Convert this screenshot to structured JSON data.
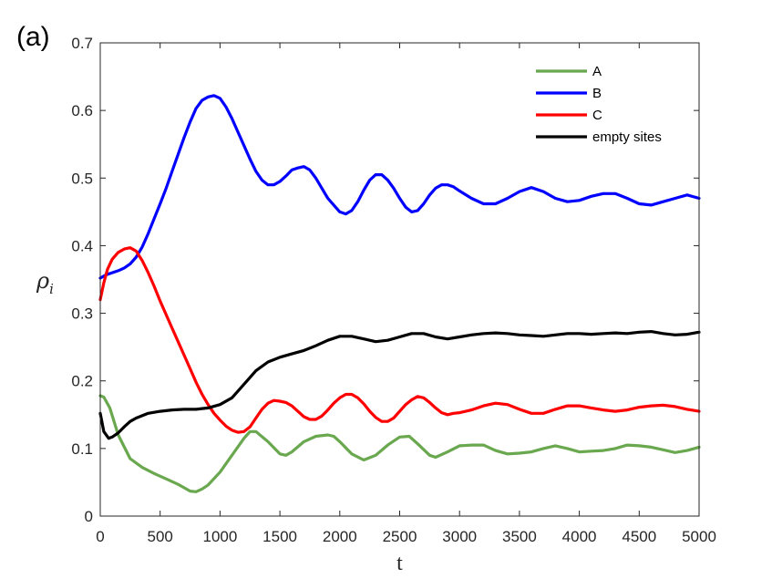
{
  "panel_label": "(a)",
  "chart_data": {
    "type": "line",
    "xlabel": "t",
    "ylabel": "ρ",
    "ylabel_subscript": "i",
    "xlim": [
      0,
      5000
    ],
    "ylim": [
      0,
      0.7
    ],
    "xticks": [
      0,
      500,
      1000,
      1500,
      2000,
      2500,
      3000,
      3500,
      4000,
      4500,
      5000
    ],
    "yticks": [
      0,
      0.1,
      0.2,
      0.3,
      0.4,
      0.5,
      0.6,
      0.7
    ],
    "xtick_labels": [
      "0",
      "500",
      "1000",
      "1500",
      "2000",
      "2500",
      "3000",
      "3500",
      "4000",
      "4500",
      "5000"
    ],
    "ytick_labels": [
      "0",
      "0.1",
      "0.2",
      "0.3",
      "0.4",
      "0.5",
      "0.6",
      "0.7"
    ],
    "grid": false,
    "legend_position": "top-right",
    "series": [
      {
        "name": "A",
        "color": "#6aa84f",
        "x": [
          0,
          30,
          80,
          150,
          250,
          350,
          450,
          550,
          650,
          700,
          750,
          800,
          850,
          900,
          1000,
          1100,
          1200,
          1250,
          1300,
          1400,
          1500,
          1550,
          1600,
          1700,
          1800,
          1900,
          1950,
          2000,
          2100,
          2200,
          2300,
          2400,
          2500,
          2580,
          2650,
          2750,
          2800,
          2900,
          3000,
          3100,
          3200,
          3300,
          3400,
          3500,
          3600,
          3700,
          3800,
          3900,
          4000,
          4100,
          4200,
          4300,
          4400,
          4500,
          4600,
          4700,
          4800,
          4900,
          5000
        ],
        "y": [
          0.178,
          0.176,
          0.16,
          0.12,
          0.085,
          0.072,
          0.063,
          0.055,
          0.047,
          0.042,
          0.037,
          0.036,
          0.04,
          0.046,
          0.065,
          0.09,
          0.115,
          0.125,
          0.125,
          0.11,
          0.092,
          0.09,
          0.095,
          0.11,
          0.118,
          0.12,
          0.118,
          0.11,
          0.092,
          0.083,
          0.09,
          0.105,
          0.117,
          0.118,
          0.107,
          0.09,
          0.087,
          0.095,
          0.104,
          0.105,
          0.105,
          0.097,
          0.092,
          0.093,
          0.095,
          0.1,
          0.104,
          0.1,
          0.095,
          0.096,
          0.097,
          0.1,
          0.105,
          0.104,
          0.102,
          0.098,
          0.094,
          0.097,
          0.102
        ]
      },
      {
        "name": "B",
        "color": "#0000ff",
        "x": [
          0,
          50,
          100,
          150,
          200,
          250,
          300,
          350,
          400,
          450,
          500,
          550,
          600,
          650,
          700,
          750,
          800,
          850,
          900,
          950,
          1000,
          1050,
          1100,
          1150,
          1200,
          1250,
          1300,
          1350,
          1400,
          1450,
          1500,
          1550,
          1600,
          1650,
          1700,
          1750,
          1800,
          1850,
          1900,
          1950,
          2000,
          2050,
          2100,
          2150,
          2200,
          2250,
          2300,
          2350,
          2400,
          2450,
          2500,
          2550,
          2600,
          2650,
          2700,
          2750,
          2800,
          2850,
          2900,
          2950,
          3000,
          3100,
          3200,
          3300,
          3400,
          3500,
          3600,
          3700,
          3800,
          3900,
          4000,
          4100,
          4200,
          4300,
          4400,
          4500,
          4600,
          4700,
          4800,
          4900,
          5000
        ],
        "y": [
          0.352,
          0.357,
          0.36,
          0.363,
          0.367,
          0.373,
          0.383,
          0.398,
          0.418,
          0.44,
          0.462,
          0.485,
          0.51,
          0.535,
          0.56,
          0.583,
          0.603,
          0.615,
          0.62,
          0.622,
          0.618,
          0.605,
          0.588,
          0.568,
          0.548,
          0.528,
          0.51,
          0.497,
          0.49,
          0.49,
          0.495,
          0.503,
          0.512,
          0.515,
          0.517,
          0.512,
          0.5,
          0.485,
          0.47,
          0.46,
          0.45,
          0.447,
          0.452,
          0.465,
          0.482,
          0.497,
          0.505,
          0.505,
          0.497,
          0.485,
          0.47,
          0.457,
          0.45,
          0.452,
          0.462,
          0.475,
          0.485,
          0.49,
          0.49,
          0.487,
          0.481,
          0.47,
          0.462,
          0.462,
          0.47,
          0.48,
          0.486,
          0.48,
          0.47,
          0.465,
          0.467,
          0.473,
          0.477,
          0.477,
          0.47,
          0.462,
          0.46,
          0.465,
          0.47,
          0.475,
          0.47
        ]
      },
      {
        "name": "C",
        "color": "#ff0000",
        "x": [
          0,
          30,
          60,
          100,
          150,
          200,
          250,
          300,
          350,
          400,
          450,
          500,
          550,
          600,
          650,
          700,
          750,
          800,
          850,
          900,
          950,
          1000,
          1050,
          1100,
          1150,
          1200,
          1250,
          1300,
          1350,
          1400,
          1450,
          1500,
          1550,
          1600,
          1650,
          1700,
          1750,
          1800,
          1850,
          1900,
          1950,
          2000,
          2050,
          2100,
          2150,
          2200,
          2250,
          2300,
          2350,
          2400,
          2450,
          2500,
          2550,
          2600,
          2650,
          2700,
          2750,
          2800,
          2850,
          2900,
          2950,
          3000,
          3100,
          3200,
          3300,
          3400,
          3500,
          3600,
          3700,
          3800,
          3900,
          4000,
          4100,
          4200,
          4300,
          4400,
          4500,
          4600,
          4700,
          4800,
          4900,
          5000
        ],
        "y": [
          0.32,
          0.345,
          0.365,
          0.38,
          0.39,
          0.395,
          0.397,
          0.392,
          0.378,
          0.36,
          0.34,
          0.318,
          0.298,
          0.278,
          0.258,
          0.238,
          0.218,
          0.198,
          0.18,
          0.165,
          0.152,
          0.142,
          0.133,
          0.127,
          0.124,
          0.125,
          0.132,
          0.145,
          0.158,
          0.167,
          0.171,
          0.17,
          0.168,
          0.163,
          0.155,
          0.147,
          0.143,
          0.143,
          0.148,
          0.157,
          0.167,
          0.175,
          0.18,
          0.18,
          0.175,
          0.166,
          0.155,
          0.146,
          0.14,
          0.14,
          0.145,
          0.155,
          0.165,
          0.172,
          0.177,
          0.175,
          0.168,
          0.16,
          0.153,
          0.15,
          0.152,
          0.153,
          0.157,
          0.163,
          0.167,
          0.165,
          0.158,
          0.152,
          0.152,
          0.158,
          0.163,
          0.163,
          0.16,
          0.157,
          0.155,
          0.157,
          0.161,
          0.163,
          0.164,
          0.162,
          0.158,
          0.155
        ]
      },
      {
        "name": "empty sites",
        "color": "#000000",
        "x": [
          0,
          30,
          70,
          100,
          150,
          200,
          250,
          300,
          400,
          500,
          600,
          700,
          800,
          900,
          1000,
          1100,
          1200,
          1300,
          1400,
          1500,
          1600,
          1700,
          1800,
          1900,
          2000,
          2100,
          2200,
          2300,
          2400,
          2500,
          2600,
          2700,
          2800,
          2900,
          3000,
          3100,
          3200,
          3300,
          3400,
          3500,
          3600,
          3700,
          3800,
          3900,
          4000,
          4100,
          4200,
          4300,
          4400,
          4500,
          4600,
          4700,
          4800,
          4900,
          5000
        ],
        "y": [
          0.152,
          0.125,
          0.115,
          0.117,
          0.123,
          0.132,
          0.14,
          0.145,
          0.152,
          0.155,
          0.157,
          0.158,
          0.158,
          0.16,
          0.165,
          0.175,
          0.195,
          0.215,
          0.228,
          0.235,
          0.24,
          0.245,
          0.252,
          0.26,
          0.266,
          0.266,
          0.262,
          0.258,
          0.26,
          0.265,
          0.27,
          0.27,
          0.265,
          0.262,
          0.265,
          0.268,
          0.27,
          0.271,
          0.27,
          0.268,
          0.267,
          0.266,
          0.268,
          0.27,
          0.27,
          0.269,
          0.27,
          0.271,
          0.27,
          0.272,
          0.273,
          0.27,
          0.268,
          0.269,
          0.272
        ]
      }
    ]
  }
}
